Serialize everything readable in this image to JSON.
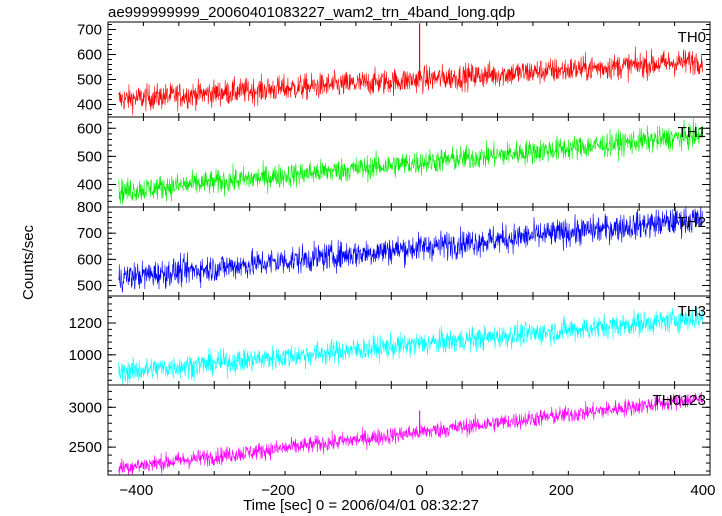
{
  "title": "ae999999999_20060401083227_wam2_trn_4band_long.qdp",
  "ylabel": "Counts/sec",
  "xlabel": "Time [sec] 0 = 2006/04/01 08:32:27",
  "chart_data": {
    "type": "line",
    "title": "ae999999999_20060401083227_wam2_trn_4band_long.qdp",
    "xlabel": "Time [sec] 0 = 2006/04/01 08:32:27",
    "ylabel": "Counts/sec",
    "xlim": [
      -440,
      410
    ],
    "xticks": [
      -400,
      -200,
      0,
      200,
      400
    ],
    "x_tick_labels": [
      "−400",
      "−200",
      "0",
      "200",
      "400"
    ],
    "grid": false,
    "panels": [
      {
        "name": "TH0",
        "color": "#ff0000",
        "ylim": [
          350,
          730
        ],
        "yticks": [
          400,
          500,
          600,
          700
        ],
        "y_tick_labels": [
          "400",
          "500",
          "600",
          "700"
        ],
        "trend_start": 420,
        "trend_end": 575,
        "noise_sd": 26,
        "spike_x": 0,
        "spike_y": 725
      },
      {
        "name": "TH1",
        "color": "#00ee00",
        "ylim": [
          320,
          640
        ],
        "yticks": [
          400,
          500,
          600
        ],
        "y_tick_labels": [
          "400",
          "500",
          "600"
        ],
        "trend_start": 375,
        "trend_end": 575,
        "noise_sd": 22
      },
      {
        "name": "TH2",
        "color": "#0000ff",
        "ylim": [
          460,
          800
        ],
        "yticks": [
          500,
          600,
          700,
          800
        ],
        "y_tick_labels": [
          "500",
          "600",
          "700",
          "800"
        ],
        "trend_start": 530,
        "trend_end": 755,
        "noise_sd": 27
      },
      {
        "name": "TH3",
        "color": "#00ffff",
        "ylim": [
          810,
          1370
        ],
        "yticks": [
          1000,
          1200
        ],
        "y_tick_labels": [
          "1000",
          "1200"
        ],
        "trend_start": 890,
        "trend_end": 1235,
        "noise_sd": 38
      },
      {
        "name": "TH0123",
        "color": "#ff00ff",
        "ylim": [
          2150,
          3280
        ],
        "yticks": [
          2500,
          3000
        ],
        "y_tick_labels": [
          "2500",
          "3000"
        ],
        "trend_start": 2240,
        "trend_end": 3110,
        "noise_sd": 55,
        "spike_x": 0,
        "spike_y": 2960
      }
    ]
  }
}
